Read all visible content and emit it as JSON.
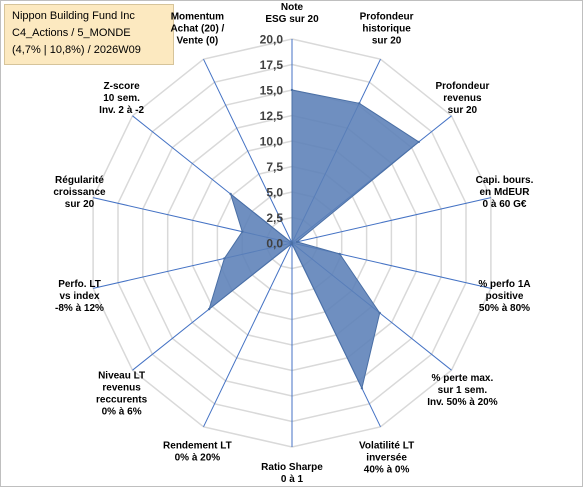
{
  "title": {
    "lines": [
      "Nippon Building Fund Inc",
      "C4_Actions / 5_MONDE",
      "(4,7% | 10,8%) / 2026W09"
    ]
  },
  "colors": {
    "fill": "#5b7fb7",
    "stroke": "#4a6fa5",
    "axis": "#4472c4",
    "grid": "#d9d9d9",
    "title_bg": "#fce9c0"
  },
  "chart_data": {
    "type": "radar",
    "rmin": 0,
    "rmax": 20,
    "grid": true,
    "ticks": [
      "0,0",
      "2,5",
      "5,0",
      "7,5",
      "10,0",
      "12,5",
      "15,0",
      "17,5",
      "20,0"
    ],
    "tick_values": [
      0,
      2.5,
      5,
      7.5,
      10,
      12.5,
      15,
      17.5,
      20
    ],
    "axes": [
      {
        "label": [
          "Note",
          "ESG sur 20"
        ],
        "value": 15.0
      },
      {
        "label": [
          "Profondeur",
          "historique",
          "sur 20"
        ],
        "value": 15.2
      },
      {
        "label": [
          "Profondeur",
          "revenus",
          "sur 20"
        ],
        "value": 15.9
      },
      {
        "label": [
          "Capi. bours.",
          "en MdEUR",
          "0 à 60 G€"
        ],
        "value": 0.5
      },
      {
        "label": [
          "% perfo 1A",
          "positive",
          "50% à 80%"
        ],
        "value": 4.8
      },
      {
        "label": [
          "% perte max.",
          "sur 1 sem.",
          "Inv. 50% à 20%"
        ],
        "value": 11.0
      },
      {
        "label": [
          "Volatilité LT",
          "inversée",
          "40% à 0%"
        ],
        "value": 15.8
      },
      {
        "label": [
          "Ratio Sharpe",
          "0 à 1"
        ],
        "value": 0.1
      },
      {
        "label": [
          "Rendement LT",
          "0% à 20%"
        ],
        "value": 0.1
      },
      {
        "label": [
          "Niveau LT",
          "revenus",
          "reccurents",
          "0% à 6%"
        ],
        "value": 10.4
      },
      {
        "label": [
          "Perfo. LT",
          "vs index",
          "-8% à 12%"
        ],
        "value": 6.8
      },
      {
        "label": [
          "Régularité",
          "croissance",
          "sur 20"
        ],
        "value": 5.0
      },
      {
        "label": [
          "Z-score",
          "10 sem.",
          "Inv. 2 à -2"
        ],
        "value": 7.7
      },
      {
        "label": [
          "Momentum",
          "Achat (20) /",
          "Vente (0)"
        ],
        "value": 0.0
      }
    ]
  }
}
